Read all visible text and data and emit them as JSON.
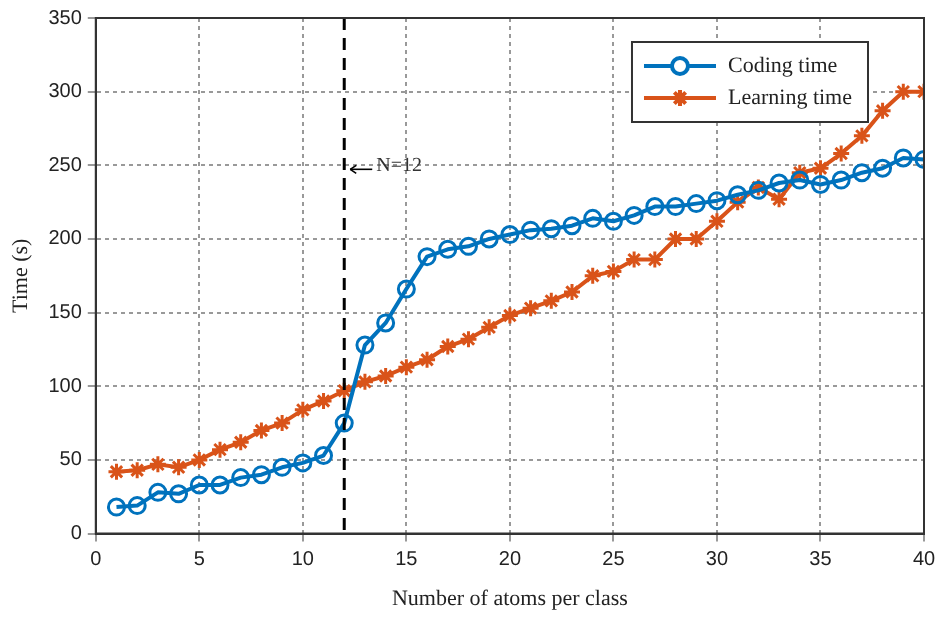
{
  "chart_data": {
    "type": "line",
    "xlabel": "Number of atoms per class",
    "ylabel": "Time (s)",
    "x": [
      1,
      2,
      3,
      4,
      5,
      6,
      7,
      8,
      9,
      10,
      11,
      12,
      13,
      14,
      15,
      16,
      17,
      18,
      19,
      20,
      21,
      22,
      23,
      24,
      25,
      26,
      27,
      28,
      29,
      30,
      31,
      32,
      33,
      34,
      35,
      36,
      37,
      38,
      39,
      40
    ],
    "series": [
      {
        "name": "Coding time",
        "color": "#0072bd",
        "marker": "circle",
        "values": [
          18,
          19,
          28,
          27,
          33,
          33,
          38,
          40,
          45,
          48,
          53,
          75,
          128,
          143,
          166,
          188,
          193,
          195,
          200,
          203,
          206,
          207,
          209,
          214,
          212,
          216,
          222,
          222,
          224,
          226,
          230,
          233,
          238,
          240,
          237,
          240,
          245,
          248,
          255,
          254
        ]
      },
      {
        "name": "Learning time",
        "color": "#d95319",
        "marker": "cross",
        "values": [
          42,
          43,
          47,
          45,
          50,
          57,
          62,
          70,
          75,
          84,
          90,
          97,
          103,
          107,
          113,
          118,
          127,
          132,
          140,
          148,
          153,
          158,
          164,
          175,
          178,
          186,
          186,
          200,
          200,
          212,
          225,
          235,
          227,
          245,
          248,
          258,
          270,
          287,
          300,
          300
        ]
      }
    ],
    "xlim": [
      0,
      40
    ],
    "xticks": [
      0,
      5,
      10,
      15,
      20,
      25,
      30,
      35,
      40
    ],
    "ylim": [
      0,
      350
    ],
    "yticks": [
      0,
      50,
      100,
      150,
      200,
      250,
      300,
      350
    ],
    "ref_lines": [
      {
        "axis": "x",
        "value": 12,
        "label": "N=12",
        "line_style": "dashed",
        "color": "#000000"
      }
    ],
    "grid": true,
    "legend": "top right",
    "line_style": "solid"
  }
}
